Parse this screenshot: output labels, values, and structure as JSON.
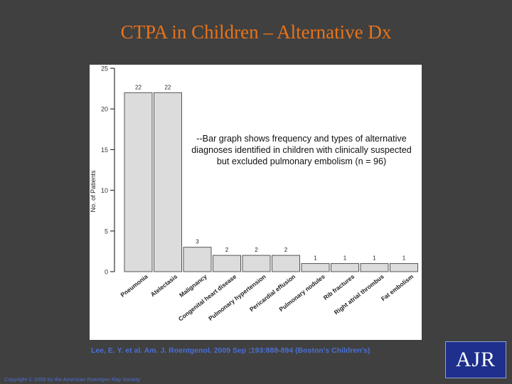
{
  "slide": {
    "title": "CTPA in Children – Alternative Dx",
    "caption": "--Bar graph shows frequency and types of alternative diagnoses identified in children with clinically suspected but excluded pulmonary embolism (n = 96)",
    "citation": "Lee, E. Y. et al. Am. J. Roentgenol. 2009 Sep ;193:888-894 (Boston's Children's)",
    "copyright": "Copyright © 2009 by the American Roentgen Ray Society",
    "logo_text": "AJR"
  },
  "colors": {
    "background": "#404040",
    "title": "#e8731a",
    "bar_fill": "#dcdcdc",
    "bar_stroke": "#555555",
    "citation": "#4a6fd4",
    "logo_bg": "#1e2f8c"
  },
  "chart_data": {
    "type": "bar",
    "ylabel": "No. of Patients",
    "xlabel": "",
    "ylim": [
      0,
      25
    ],
    "yticks": [
      0,
      5,
      10,
      15,
      20,
      25
    ],
    "grid": false,
    "categories": [
      "Pneumonia",
      "Atelectasis",
      "Malignancy",
      "Congenital heart disease",
      "Pulmonary hypertension",
      "Pericardial effusion",
      "Pulmonary nodules",
      "Rib fractures",
      "Right atrial thrombus",
      "Fat embolism"
    ],
    "values": [
      22,
      22,
      3,
      2,
      2,
      2,
      1,
      1,
      1,
      1
    ]
  }
}
